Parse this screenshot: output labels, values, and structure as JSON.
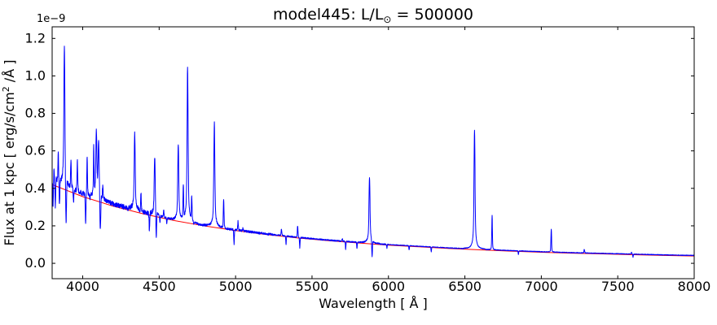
{
  "figure": {
    "title": {
      "prefix": "model445: L/L",
      "sub": "⊙",
      "suffix": " = 500000"
    },
    "offset_label": "1e−9",
    "xlabel": "Wavelength [ Å ]",
    "ylabel": {
      "prefix": "Flux at 1 kpc [ erg/s/cm",
      "sup": "2",
      "suffix": " /Å ]"
    },
    "background": "#ffffff",
    "axis_color": "#000000"
  },
  "chart_data": {
    "type": "line",
    "title": "model445: L/L⊙ = 500000",
    "xlabel": "Wavelength [ Å ]",
    "ylabel": "Flux at 1 kpc [ erg/s/cm2 /Å ]",
    "y_offset_factor": "1e−9",
    "grid": false,
    "legend": false,
    "xlim": [
      3800,
      8000
    ],
    "ylim_1e9": [
      -0.082,
      1.262
    ],
    "xticks": [
      4000,
      4500,
      5000,
      5500,
      6000,
      6500,
      7000,
      7500,
      8000
    ],
    "yticks_1e9": [
      0.0,
      0.2,
      0.4,
      0.6,
      0.8,
      1.0,
      1.2
    ],
    "series": [
      {
        "name": "model spectrum",
        "color": "#0000ff"
      },
      {
        "name": "continuum fit",
        "color": "#ff0000"
      }
    ],
    "continuum_1e9": {
      "x": [
        3800,
        4000,
        4200,
        4400,
        4600,
        4800,
        5000,
        5200,
        5400,
        5600,
        5800,
        6000,
        6200,
        6400,
        6600,
        6800,
        7000,
        7200,
        7400,
        7600,
        7800,
        8000
      ],
      "y": [
        0.42,
        0.356,
        0.305,
        0.263,
        0.228,
        0.199,
        0.175,
        0.154,
        0.136,
        0.121,
        0.109,
        0.097,
        0.088,
        0.079,
        0.072,
        0.065,
        0.059,
        0.054,
        0.05,
        0.046,
        0.042,
        0.039
      ]
    },
    "baseline_excess_1e9": {
      "at_3800": 0.022,
      "zero_from": 4700,
      "floor": 0.003
    },
    "noise_regions_1e9": [
      {
        "from": 3800,
        "to": 4480,
        "amp": 0.013
      },
      {
        "from": 4480,
        "to": 5250,
        "amp": 0.006
      },
      {
        "from": 5250,
        "to": 6000,
        "amp": 0.0035
      },
      {
        "from": 6000,
        "to": 8000,
        "amp": 0.0018
      }
    ],
    "emission_lines_1e9": [
      [
        3812,
        0.5
      ],
      [
        3826,
        0.46
      ],
      [
        3840,
        0.58
      ],
      [
        3880,
        1.15
      ],
      [
        3923,
        0.55
      ],
      [
        3965,
        0.55
      ],
      [
        4029,
        0.57
      ],
      [
        4072,
        0.6
      ],
      [
        4089,
        0.69
      ],
      [
        4104,
        0.64
      ],
      [
        4131,
        0.4
      ],
      [
        4200,
        0.3
      ],
      [
        4340,
        0.69
      ],
      [
        4381,
        0.37
      ],
      [
        4471,
        0.56
      ],
      [
        4530,
        0.28
      ],
      [
        4625,
        0.63
      ],
      [
        4658,
        0.4
      ],
      [
        4686,
        1.04
      ],
      [
        4713,
        0.34
      ],
      [
        4861,
        0.75
      ],
      [
        4922,
        0.34
      ],
      [
        5016,
        0.225
      ],
      [
        5048,
        0.19
      ],
      [
        5180,
        0.16
      ],
      [
        5300,
        0.185
      ],
      [
        5406,
        0.2
      ],
      [
        5698,
        0.13
      ],
      [
        5876,
        0.455
      ],
      [
        6563,
        0.71
      ],
      [
        6678,
        0.255
      ],
      [
        7065,
        0.182
      ],
      [
        7281,
        0.075
      ],
      [
        7590,
        0.058
      ]
    ],
    "absorption_lines_1e9": [
      [
        3806,
        0.31
      ],
      [
        3821,
        0.29
      ],
      [
        3848,
        0.3
      ],
      [
        3891,
        0.15
      ],
      [
        3940,
        0.32
      ],
      [
        4019,
        0.22
      ],
      [
        4048,
        0.33
      ],
      [
        4115,
        0.14
      ],
      [
        4196,
        0.33
      ],
      [
        4297,
        0.27
      ],
      [
        4360,
        0.28
      ],
      [
        4436,
        0.17
      ],
      [
        4481,
        0.104
      ],
      [
        4505,
        0.21
      ],
      [
        4550,
        0.21
      ],
      [
        4726,
        0.2
      ],
      [
        4990,
        0.105
      ],
      [
        5330,
        0.1
      ],
      [
        5420,
        0.082
      ],
      [
        5720,
        0.075
      ],
      [
        5794,
        0.08
      ],
      [
        5893,
        0.018
      ],
      [
        5990,
        0.082
      ],
      [
        6135,
        0.072
      ],
      [
        6280,
        0.062
      ],
      [
        6850,
        0.046
      ],
      [
        7600,
        0.032
      ]
    ]
  }
}
